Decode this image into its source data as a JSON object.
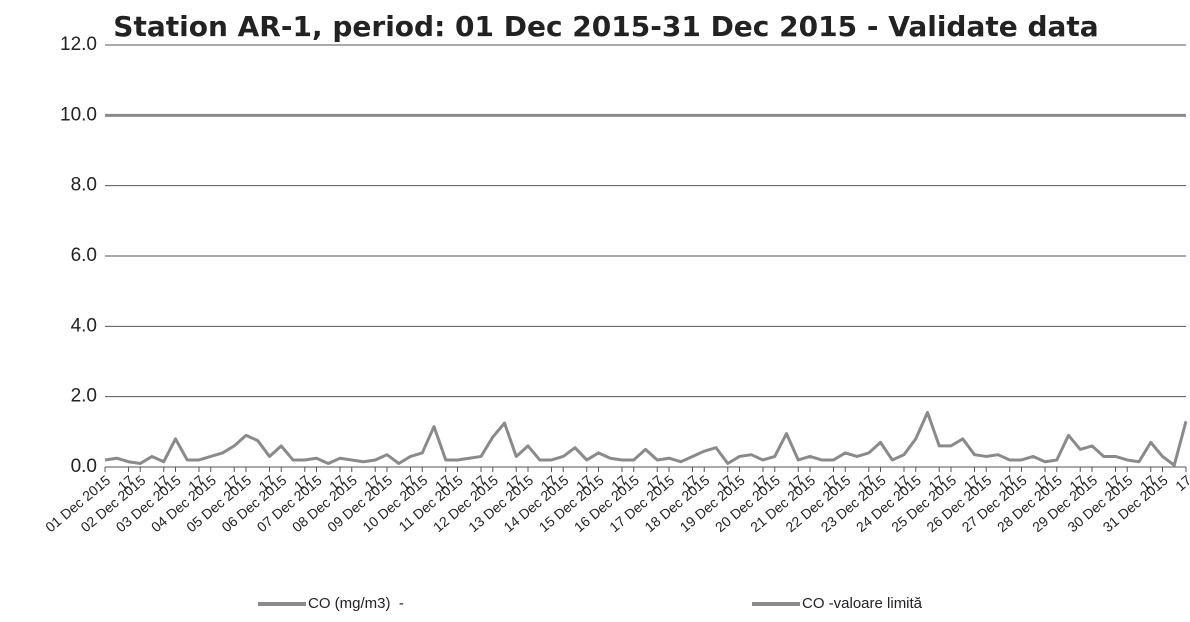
{
  "chart_data": {
    "type": "line",
    "title": "Station AR-1, period: 01 Dec 2015-31 Dec 2015 - Validate data",
    "categories": [
      "01 Dec 2015",
      null,
      "17",
      "02 Dec 2015",
      null,
      "17",
      "03 Dec 2015",
      null,
      "17",
      "04 Dec 2015",
      null,
      "17",
      "05 Dec 2015",
      null,
      "17",
      "06 Dec 2015",
      null,
      "17",
      "07 Dec 2015",
      null,
      "17",
      "08 Dec 2015",
      null,
      "17",
      "09 Dec 2015",
      null,
      "17",
      "10 Dec 2015",
      null,
      "17",
      "11 Dec 2015",
      null,
      "17",
      "12 Dec 2015",
      null,
      "17",
      "13 Dec 2015",
      null,
      "17",
      "14 Dec 2015",
      null,
      "17",
      "15 Dec 2015",
      null,
      "17",
      "16 Dec 2015",
      null,
      "17",
      "17 Dec 2015",
      null,
      "17",
      "18 Dec 2015",
      null,
      "17",
      "19 Dec 2015",
      null,
      "17",
      "20 Dec 2015",
      null,
      "17",
      "21 Dec 2015",
      null,
      "17",
      "22 Dec 2015",
      null,
      "17",
      "23 Dec 2015",
      null,
      "17",
      "24 Dec 2015",
      null,
      "17",
      "25 Dec 2015",
      null,
      "17",
      "26 Dec 2015",
      null,
      "17",
      "27 Dec 2015",
      null,
      "17",
      "28 Dec 2015",
      null,
      "17",
      "29 Dec 2015",
      null,
      "17",
      "30 Dec 2015",
      null,
      "17",
      "31 Dec 2015",
      null,
      "17"
    ],
    "series": [
      {
        "name": "CO (mg/m3)  -",
        "color": "#8a8a8a",
        "values": [
          0.2,
          0.25,
          0.15,
          0.1,
          0.3,
          0.15,
          0.8,
          0.2,
          0.2,
          0.3,
          0.4,
          0.6,
          0.9,
          0.75,
          0.3,
          0.6,
          0.2,
          0.2,
          0.25,
          0.1,
          0.25,
          0.2,
          0.15,
          0.2,
          0.35,
          0.1,
          0.3,
          0.4,
          1.15,
          0.2,
          0.2,
          0.25,
          0.3,
          0.85,
          1.25,
          0.3,
          0.6,
          0.2,
          0.2,
          0.3,
          0.55,
          0.2,
          0.4,
          0.25,
          0.2,
          0.2,
          0.5,
          0.2,
          0.25,
          0.15,
          0.3,
          0.45,
          0.55,
          0.1,
          0.3,
          0.35,
          0.2,
          0.3,
          0.95,
          0.2,
          0.3,
          0.2,
          0.2,
          0.4,
          0.3,
          0.4,
          0.7,
          0.2,
          0.35,
          0.8,
          1.55,
          0.6,
          0.6,
          0.8,
          0.35,
          0.3,
          0.35,
          0.2,
          0.2,
          0.3,
          0.15,
          0.2,
          0.9,
          0.5,
          0.6,
          0.3,
          0.3,
          0.2,
          0.15,
          0.7,
          0.3,
          0.05,
          1.3
        ]
      },
      {
        "name": "CO -valoare limită",
        "color": "#8a8a8a",
        "values": [
          10,
          10,
          10,
          10,
          10,
          10,
          10,
          10,
          10,
          10,
          10,
          10,
          10,
          10,
          10,
          10,
          10,
          10,
          10,
          10,
          10,
          10,
          10,
          10,
          10,
          10,
          10,
          10,
          10,
          10,
          10,
          10,
          10,
          10,
          10,
          10,
          10,
          10,
          10,
          10,
          10,
          10,
          10,
          10,
          10,
          10,
          10,
          10,
          10,
          10,
          10,
          10,
          10,
          10,
          10,
          10,
          10,
          10,
          10,
          10,
          10,
          10,
          10,
          10,
          10,
          10,
          10,
          10,
          10,
          10,
          10,
          10,
          10,
          10,
          10,
          10,
          10,
          10,
          10,
          10,
          10,
          10,
          10,
          10,
          10,
          10,
          10,
          10,
          10,
          10,
          10,
          10,
          10
        ]
      }
    ],
    "ylim": [
      0,
      12
    ],
    "yticks": [
      {
        "value": 0,
        "label": "0.0"
      },
      {
        "value": 2,
        "label": "2.0"
      },
      {
        "value": 4,
        "label": "4.0"
      },
      {
        "value": 6,
        "label": "6.0"
      },
      {
        "value": 8,
        "label": "8.0"
      },
      {
        "value": 10,
        "label": "10.0"
      },
      {
        "value": 12,
        "label": "12.0"
      }
    ],
    "grid": true
  }
}
